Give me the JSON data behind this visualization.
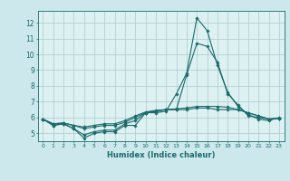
{
  "xlabel": "Humidex (Indice chaleur)",
  "ylabel": "",
  "bg_color": "#cce8ec",
  "grid_color": "#aacccc",
  "line_color": "#1a6b6b",
  "plot_bg": "#ddf0f2",
  "xlim": [
    -0.5,
    23.5
  ],
  "ylim": [
    4.5,
    12.75
  ],
  "xticks": [
    0,
    1,
    2,
    3,
    4,
    5,
    6,
    7,
    8,
    9,
    10,
    11,
    12,
    13,
    14,
    15,
    16,
    17,
    18,
    19,
    20,
    21,
    22,
    23
  ],
  "yticks": [
    5,
    6,
    7,
    8,
    9,
    10,
    11,
    12
  ],
  "series": [
    [
      5.9,
      5.5,
      5.6,
      5.3,
      4.7,
      5.0,
      5.1,
      5.1,
      5.5,
      5.5,
      6.3,
      6.3,
      6.4,
      7.5,
      8.8,
      12.3,
      11.5,
      9.3,
      7.6,
      6.7,
      6.2,
      5.9,
      5.8,
      6.0
    ],
    [
      5.9,
      5.5,
      5.6,
      5.3,
      4.9,
      5.1,
      5.2,
      5.2,
      5.6,
      5.8,
      6.3,
      6.4,
      6.5,
      6.5,
      8.7,
      10.7,
      10.5,
      9.5,
      7.5,
      6.8,
      6.1,
      6.0,
      5.9,
      5.95
    ],
    [
      5.9,
      5.6,
      5.65,
      5.5,
      5.3,
      5.4,
      5.5,
      5.5,
      5.7,
      6.0,
      6.3,
      6.4,
      6.5,
      6.5,
      6.5,
      6.6,
      6.6,
      6.5,
      6.5,
      6.5,
      6.3,
      6.1,
      5.9,
      5.95
    ],
    [
      5.9,
      5.6,
      5.65,
      5.5,
      5.4,
      5.5,
      5.6,
      5.6,
      5.8,
      6.1,
      6.35,
      6.45,
      6.5,
      6.55,
      6.6,
      6.7,
      6.7,
      6.7,
      6.65,
      6.5,
      6.3,
      6.1,
      5.9,
      5.95
    ]
  ]
}
